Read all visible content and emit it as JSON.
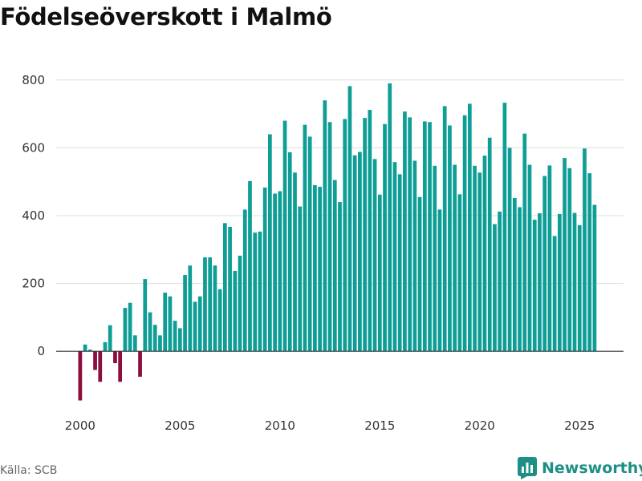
{
  "chart_data": {
    "type": "bar",
    "title": "Födelseöverskott i Malmö",
    "xlabel": "",
    "ylabel": "",
    "xlim": [
      1998.8,
      2027.2
    ],
    "ylim": [
      -165,
      835
    ],
    "yticks": [
      0,
      200,
      400,
      600,
      800
    ],
    "xticks": [
      2000,
      2005,
      2010,
      2015,
      2020,
      2025
    ],
    "start_year": 2000,
    "periods_per_year": 4,
    "values": [
      -145,
      20,
      5,
      -55,
      -90,
      27,
      77,
      -35,
      -90,
      128,
      143,
      47,
      -75,
      213,
      115,
      78,
      47,
      173,
      162,
      90,
      68,
      225,
      253,
      146,
      162,
      277,
      277,
      253,
      183,
      378,
      367,
      237,
      282,
      418,
      502,
      350,
      353,
      483,
      640,
      465,
      472,
      680,
      587,
      527,
      427,
      668,
      633,
      490,
      485,
      740,
      676,
      505,
      440,
      685,
      782,
      578,
      588,
      688,
      712,
      567,
      462,
      670,
      790,
      558,
      522,
      707,
      690,
      562,
      455,
      678,
      676,
      547,
      418,
      723,
      666,
      550,
      463,
      696,
      730,
      547,
      527,
      577,
      630,
      375,
      412,
      733,
      600,
      452,
      425,
      642,
      550,
      388,
      407,
      517,
      548,
      340,
      405,
      570,
      540,
      408,
      372,
      598,
      525,
      432
    ],
    "colors": {
      "positive": "#0f9e96",
      "negative": "#8b0e3f"
    }
  },
  "footer": {
    "source": "Källa: SCB",
    "brand": "Newsworthy"
  }
}
